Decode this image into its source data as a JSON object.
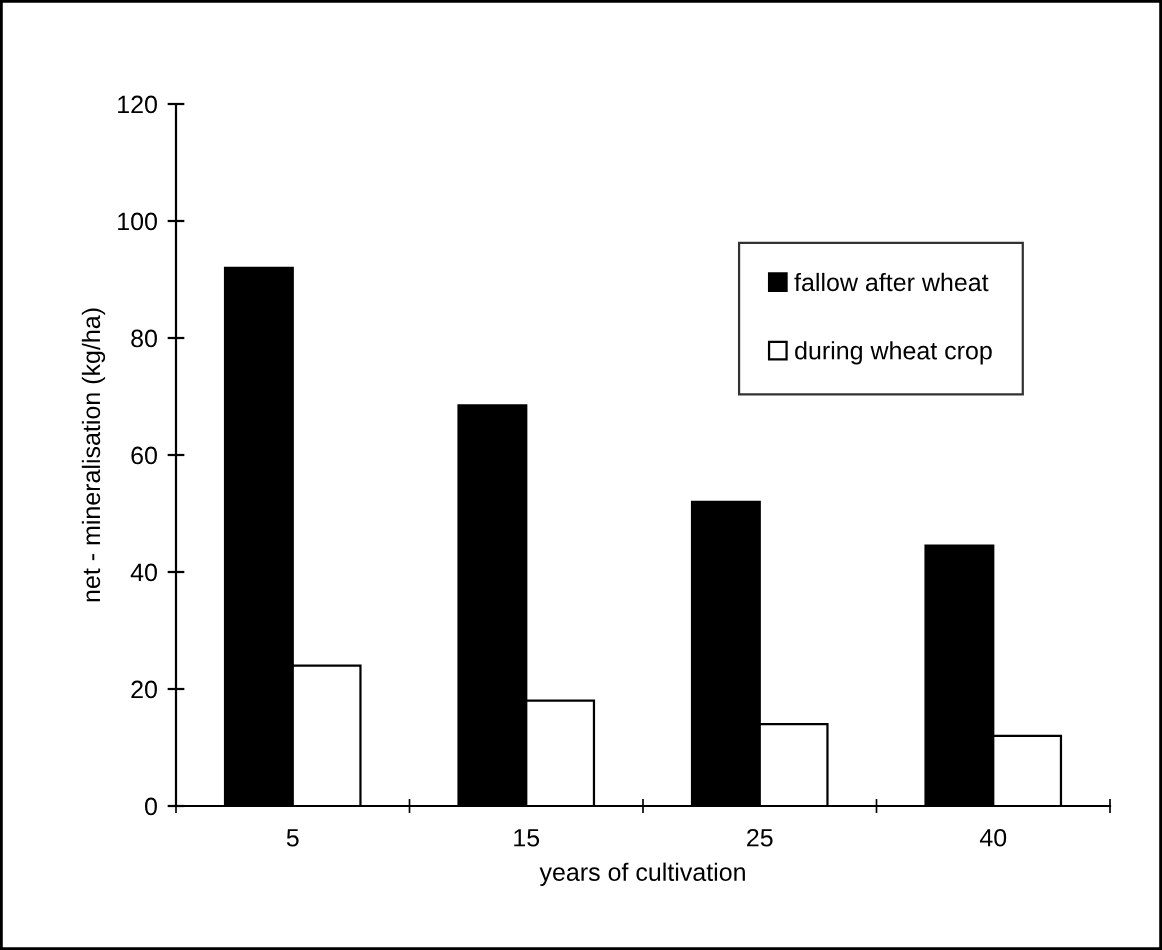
{
  "chart_data": {
    "type": "bar",
    "xlabel": "years of cultivation",
    "ylabel": "net - mineralisation (kg/ha)",
    "categories": [
      "5",
      "15",
      "25",
      "40"
    ],
    "series": [
      {
        "name": "fallow after wheat",
        "color": "#000000",
        "values": [
          92,
          68.5,
          52,
          44.5
        ]
      },
      {
        "name": "during wheat crop",
        "color": "#ffffff",
        "values": [
          24,
          18,
          14,
          12
        ]
      }
    ],
    "ylim": [
      0,
      120
    ],
    "yticks": [
      0,
      20,
      40,
      60,
      80,
      100,
      120
    ],
    "grid": false,
    "legend": "top right"
  }
}
